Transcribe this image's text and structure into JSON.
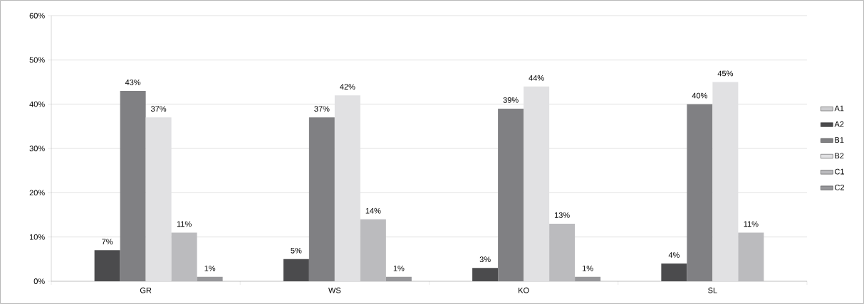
{
  "chart_data": {
    "type": "bar",
    "categories": [
      "GR",
      "WS",
      "KO",
      "SL"
    ],
    "series": [
      {
        "name": "A1",
        "color": "#cdcdcf",
        "values": [
          null,
          null,
          null,
          null
        ]
      },
      {
        "name": "A2",
        "color": "#4b4b4d",
        "values": [
          7,
          5,
          3,
          4
        ],
        "value_labels": [
          "7%",
          "5%",
          "3%",
          "4%"
        ]
      },
      {
        "name": "B1",
        "color": "#808083",
        "values": [
          43,
          37,
          39,
          40
        ],
        "value_labels": [
          "43%",
          "37%",
          "39%",
          "40%"
        ]
      },
      {
        "name": "B2",
        "color": "#e1e1e3",
        "values": [
          37,
          42,
          44,
          45
        ],
        "value_labels": [
          "37%",
          "42%",
          "44%",
          "45%"
        ]
      },
      {
        "name": "C1",
        "color": "#bbbbbe",
        "values": [
          11,
          14,
          13,
          11
        ],
        "value_labels": [
          "11%",
          "14%",
          "13%",
          "11%"
        ]
      },
      {
        "name": "C2",
        "color": "#97979a",
        "values": [
          1,
          1,
          1,
          null
        ],
        "value_labels": [
          "1%",
          "1%",
          "1%",
          null
        ]
      }
    ],
    "ylim": [
      0,
      60
    ],
    "yticks": [
      {
        "value": 0,
        "label": "0%"
      },
      {
        "value": 10,
        "label": "10%"
      },
      {
        "value": 20,
        "label": "20%"
      },
      {
        "value": 30,
        "label": "30%"
      },
      {
        "value": 40,
        "label": "40%"
      },
      {
        "value": 50,
        "label": "50%"
      },
      {
        "value": 60,
        "label": "60%"
      }
    ],
    "grid": "y",
    "legend": "right"
  }
}
